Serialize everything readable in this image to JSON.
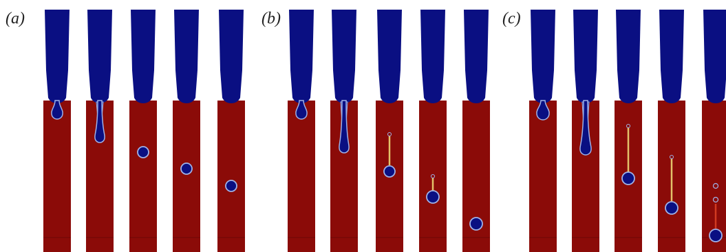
{
  "figure": {
    "panels": [
      {
        "label": "(a)",
        "frames": [
          {
            "stage": "pinching-at-nozzle",
            "thread": false
          },
          {
            "stage": "neck-thinning",
            "thread": true
          },
          {
            "stage": "detached-drop",
            "thread": false
          },
          {
            "stage": "detached-drop",
            "thread": false
          },
          {
            "stage": "detached-drop",
            "thread": false
          }
        ]
      },
      {
        "label": "(b)",
        "frames": [
          {
            "stage": "pinching-at-nozzle",
            "thread": false
          },
          {
            "stage": "neck-thinning",
            "thread": true
          },
          {
            "stage": "drop-with-tail",
            "thread": true
          },
          {
            "stage": "drop-with-satellite",
            "thread": true
          },
          {
            "stage": "detached-drop",
            "thread": false
          }
        ]
      },
      {
        "label": "(c)",
        "frames": [
          {
            "stage": "pinching-at-nozzle",
            "thread": false
          },
          {
            "stage": "neck-thinning",
            "thread": true
          },
          {
            "stage": "drop-with-tail",
            "thread": true
          },
          {
            "stage": "drop-with-long-thread",
            "thread": true
          },
          {
            "stage": "drop-with-satellites",
            "thread": true
          }
        ]
      }
    ],
    "colors": {
      "dispersed_phase": "#0a0f82",
      "continuous_phase": "#8b0b08",
      "interface_outline": "#9fb2e8",
      "thread_tail": "#e3c26a",
      "thread_red": "#d23a22",
      "background": "#ffffff"
    }
  }
}
